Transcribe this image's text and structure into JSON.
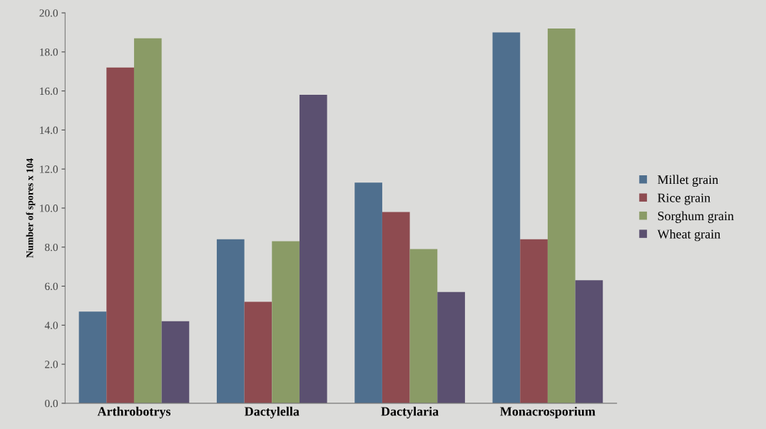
{
  "chart_data": {
    "type": "bar",
    "ylabel": "Number of spores x 104",
    "categories": [
      "Arthrobotrys",
      "Dactylella",
      "Dactylaria",
      "Monacrosporium"
    ],
    "series": [
      {
        "name": "Millet grain",
        "color": "#4f6f8e",
        "values": [
          4.7,
          8.4,
          11.3,
          19.0
        ]
      },
      {
        "name": "Rice grain",
        "color": "#8e4b50",
        "values": [
          17.2,
          5.2,
          9.8,
          8.4
        ]
      },
      {
        "name": "Sorghum grain",
        "color": "#8a9b66",
        "values": [
          18.7,
          8.3,
          7.9,
          19.2
        ]
      },
      {
        "name": "Wheat grain",
        "color": "#5b5070",
        "values": [
          4.2,
          15.8,
          5.7,
          6.3
        ]
      }
    ],
    "ylim": [
      0,
      20
    ],
    "yticks": [
      {
        "value": 0,
        "label": "0.0"
      },
      {
        "value": 2,
        "label": "2.0"
      },
      {
        "value": 4,
        "label": "4.0"
      },
      {
        "value": 6,
        "label": "6.0"
      },
      {
        "value": 8,
        "label": "8.0"
      },
      {
        "value": 10,
        "label": "10.0"
      },
      {
        "value": 12,
        "label": "12.0"
      },
      {
        "value": 14,
        "label": "14.0"
      },
      {
        "value": 16,
        "label": "16.0"
      },
      {
        "value": 18,
        "label": "18.0"
      },
      {
        "value": 20,
        "label": "20.0"
      }
    ],
    "grid": false,
    "legend": "right"
  }
}
